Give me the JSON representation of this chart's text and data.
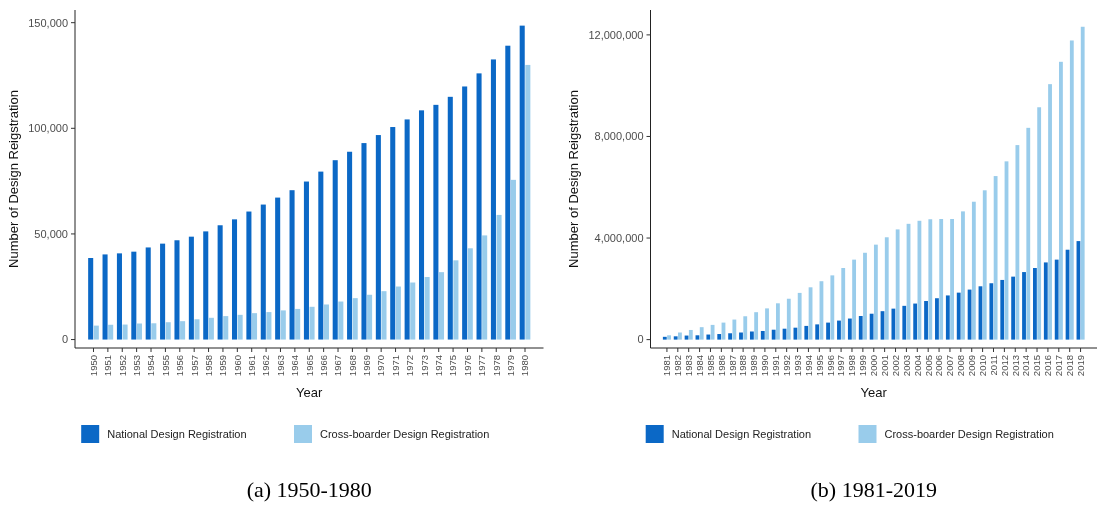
{
  "chart_data": [
    {
      "type": "bar",
      "title": "(a) 1950-1980",
      "xlabel": "Year",
      "ylabel": "Number of Design Reigstration",
      "legend": "bottom",
      "grid": false,
      "categories": [
        "1950",
        "1951",
        "1952",
        "1953",
        "1954",
        "1955",
        "1956",
        "1957",
        "1958",
        "1959",
        "1960",
        "1961",
        "1962",
        "1963",
        "1964",
        "1965",
        "1966",
        "1967",
        "1968",
        "1969",
        "1970",
        "1971",
        "1972",
        "1973",
        "1974",
        "1975",
        "1976",
        "1977",
        "1978",
        "1979",
        "1980"
      ],
      "ylim": [
        -4000,
        156000
      ],
      "yticks": [
        0,
        {
          "value": 50000,
          "label": "50,000"
        },
        {
          "value": 100000,
          "label": "100,000"
        },
        {
          "value": 150000,
          "label": "150,000"
        }
      ],
      "series": [
        {
          "name": "National Design Registration",
          "color": "#0b68c6",
          "values": [
            38600,
            40300,
            40800,
            41600,
            43600,
            45400,
            47000,
            48700,
            51200,
            54100,
            56900,
            60600,
            63900,
            67200,
            70700,
            74800,
            79500,
            84900,
            88900,
            93000,
            96800,
            100600,
            104200,
            108500,
            111100,
            114900,
            119800,
            126000,
            132600,
            139100,
            148600
          ]
        },
        {
          "name": "Cross-boarder Design Registration",
          "color": "#99cceb",
          "values": [
            6600,
            7000,
            7100,
            7600,
            7700,
            8200,
            8700,
            9600,
            10300,
            11100,
            11700,
            12500,
            13000,
            13800,
            14500,
            15500,
            16600,
            18000,
            19600,
            21200,
            22900,
            25100,
            27000,
            29600,
            31900,
            37500,
            43200,
            49300,
            59000,
            75600,
            130000
          ]
        }
      ]
    },
    {
      "type": "bar",
      "title": "(b) 1981-2019",
      "xlabel": "Year",
      "ylabel": "Number of Design Reigstration",
      "legend": "bottom",
      "grid": false,
      "categories": [
        "1981",
        "1982",
        "1983",
        "1984",
        "1985",
        "1986",
        "1987",
        "1988",
        "1989",
        "1990",
        "1991",
        "1992",
        "1993",
        "1994",
        "1995",
        "1996",
        "1997",
        "1998",
        "1999",
        "2000",
        "2001",
        "2002",
        "2003",
        "2004",
        "2005",
        "2006",
        "2007",
        "2008",
        "2009",
        "2010",
        "2011",
        "2012",
        "2013",
        "2014",
        "2015",
        "2016",
        "2017",
        "2018",
        "2019"
      ],
      "ylim": [
        -330000,
        12980000
      ],
      "yticks": [
        0,
        {
          "value": 4000000,
          "label": "4,000,000"
        },
        {
          "value": 8000000,
          "label": "8,000,000"
        },
        {
          "value": 12000000,
          "label": "12,000,000"
        }
      ],
      "series": [
        {
          "name": "National Design Registration",
          "color": "#0b68c6",
          "values": [
            110000,
            130000,
            160000,
            170000,
            200000,
            220000,
            250000,
            280000,
            320000,
            340000,
            390000,
            430000,
            470000,
            540000,
            600000,
            670000,
            750000,
            830000,
            930000,
            1020000,
            1120000,
            1220000,
            1330000,
            1420000,
            1520000,
            1630000,
            1740000,
            1850000,
            1970000,
            2100000,
            2220000,
            2350000,
            2480000,
            2660000,
            2820000,
            3040000,
            3150000,
            3540000,
            3880000
          ]
        },
        {
          "name": "Cross-boarder Design Registration",
          "color": "#99cceb",
          "values": [
            170000,
            280000,
            380000,
            490000,
            580000,
            670000,
            790000,
            920000,
            1080000,
            1230000,
            1430000,
            1610000,
            1840000,
            2060000,
            2300000,
            2530000,
            2820000,
            3150000,
            3420000,
            3740000,
            4030000,
            4340000,
            4560000,
            4680000,
            4740000,
            4750000,
            4750000,
            5050000,
            5430000,
            5880000,
            6440000,
            7020000,
            7660000,
            8340000,
            9150000,
            10060000,
            10940000,
            11780000,
            12320000
          ]
        }
      ]
    }
  ]
}
